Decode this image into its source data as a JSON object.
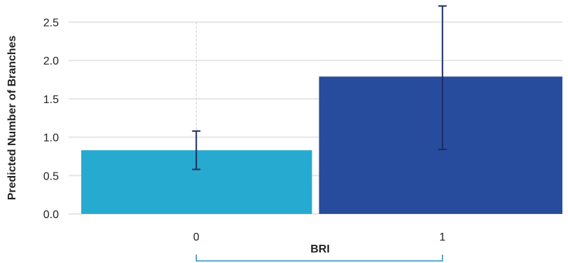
{
  "chart_data": {
    "type": "bar",
    "xlabel": "BRI",
    "ylabel": "Predicted Number of Branches",
    "categories": [
      "0",
      "1"
    ],
    "values": [
      0.83,
      1.79
    ],
    "error_low": [
      0.58,
      0.84
    ],
    "error_high": [
      1.08,
      2.71
    ],
    "ylim": [
      0,
      2.75
    ],
    "yticks": [
      "0.0",
      "0.5",
      "1.0",
      "1.5",
      "2.0",
      "2.5"
    ],
    "grid": true,
    "colors": [
      "#27AAD0",
      "#284C9D"
    ],
    "error_color": "#1F2A60",
    "grid_color": "#E6E6E6",
    "bracket_color": "#2A8FB8"
  }
}
